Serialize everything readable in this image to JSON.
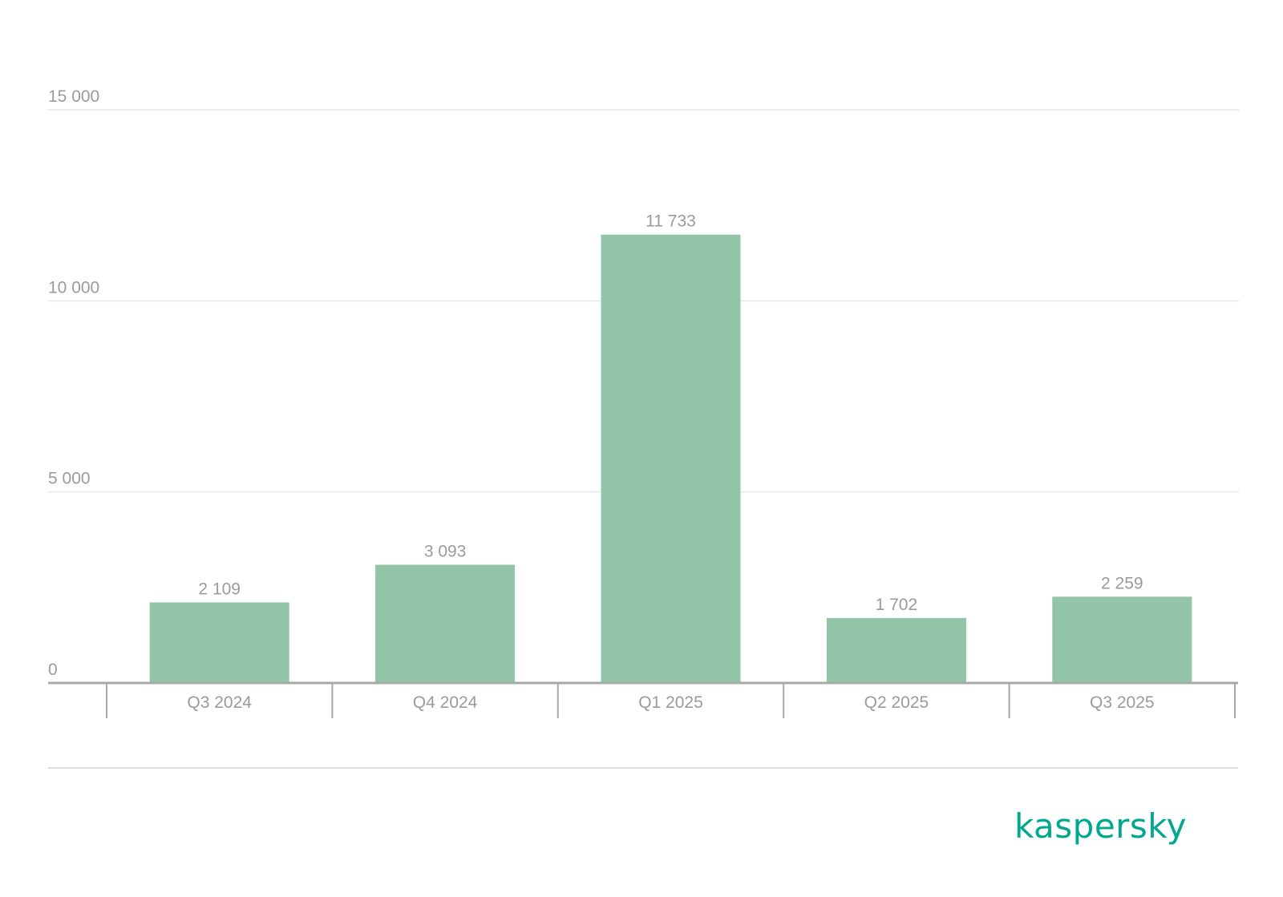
{
  "chart_data": {
    "type": "bar",
    "categories": [
      "Q3 2024",
      "Q4 2024",
      "Q1 2025",
      "Q2 2025",
      "Q3 2025"
    ],
    "values": [
      2109,
      3093,
      11733,
      1702,
      2259
    ],
    "value_labels": [
      "2 109",
      "3 093",
      "11 733",
      "1 702",
      "2 259"
    ],
    "yticks": [
      0,
      5000,
      10000,
      15000
    ],
    "ytick_labels": [
      "0",
      "5 000",
      "10 000",
      "15 000"
    ],
    "ylim": [
      0,
      15000
    ],
    "grid": true,
    "bar_color": "#92c4a8",
    "text_color": "#9b9b9b",
    "gridline_color": "#e6e6e6",
    "axis_color": "#a8a8a8"
  },
  "brand": {
    "logo_text": "kaspersky",
    "color": "#00a88e"
  }
}
